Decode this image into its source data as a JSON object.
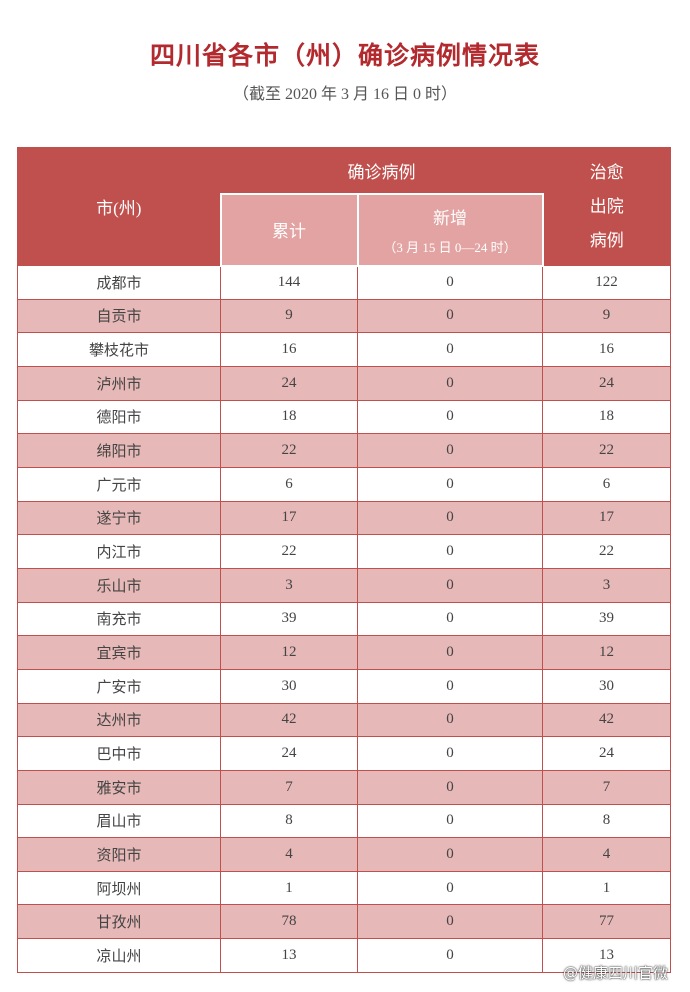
{
  "header": {
    "title": "四川省各市（州）确诊病例情况表",
    "subtitle": "（截至 2020 年 3 月 16 日 0 时）"
  },
  "table": {
    "columns": {
      "city": "市(州)",
      "confirmed": "确诊病例",
      "total": "累计",
      "new": "新增",
      "new_note": "（3 月 15 日 0—24 时）",
      "cured": "治愈出院病例"
    },
    "rows": [
      [
        "成都市",
        144,
        0,
        122
      ],
      [
        "自贡市",
        9,
        0,
        9
      ],
      [
        "攀枝花市",
        16,
        0,
        16
      ],
      [
        "泸州市",
        24,
        0,
        24
      ],
      [
        "德阳市",
        18,
        0,
        18
      ],
      [
        "绵阳市",
        22,
        0,
        22
      ],
      [
        "广元市",
        6,
        0,
        6
      ],
      [
        "遂宁市",
        17,
        0,
        17
      ],
      [
        "内江市",
        22,
        0,
        22
      ],
      [
        "乐山市",
        3,
        0,
        3
      ],
      [
        "南充市",
        39,
        0,
        39
      ],
      [
        "宜宾市",
        12,
        0,
        12
      ],
      [
        "广安市",
        30,
        0,
        30
      ],
      [
        "达州市",
        42,
        0,
        42
      ],
      [
        "巴中市",
        24,
        0,
        24
      ],
      [
        "雅安市",
        7,
        0,
        7
      ],
      [
        "眉山市",
        8,
        0,
        8
      ],
      [
        "资阳市",
        4,
        0,
        4
      ],
      [
        "阿坝州",
        1,
        0,
        1
      ],
      [
        "甘孜州",
        78,
        0,
        77
      ],
      [
        "凉山州",
        13,
        0,
        13
      ]
    ]
  },
  "watermark": "@健康四川官微"
}
